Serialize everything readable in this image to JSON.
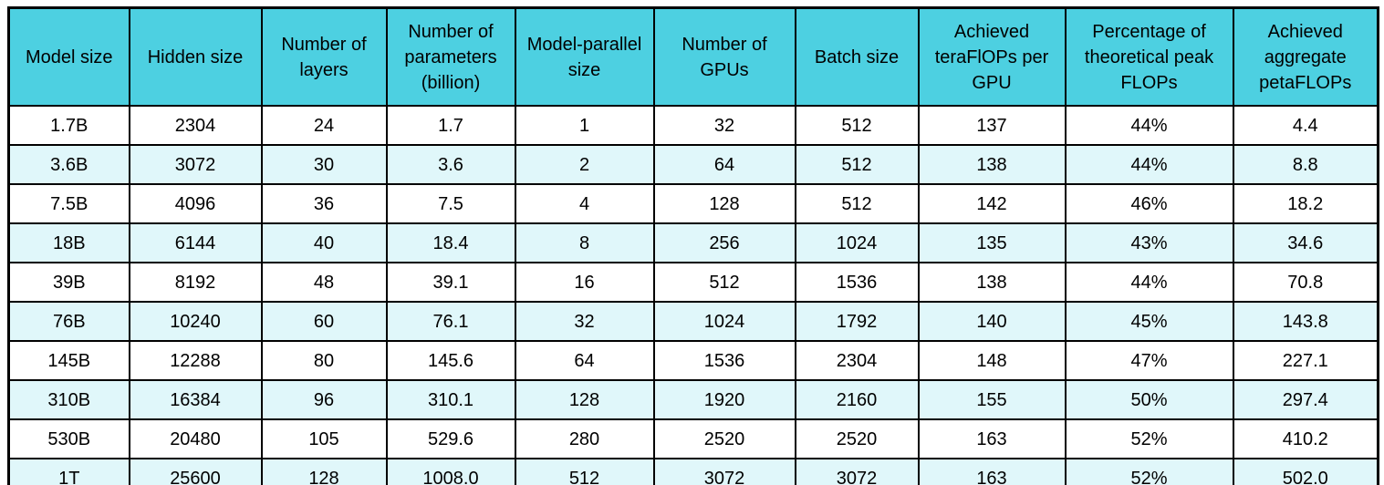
{
  "colors": {
    "header_bg": "#4dd0e1",
    "row_bg": "#ffffff",
    "row_alt_bg": "#e0f7fa",
    "border": "#000000",
    "text": "#000000",
    "page_bg": "#ffffff"
  },
  "chart_data": {
    "type": "table",
    "columns": [
      "Model size",
      "Hidden size",
      "Number of layers",
      "Number of parameters (billion)",
      "Model-parallel size",
      "Number of GPUs",
      "Batch size",
      "Achieved teraFlOPs per GPU",
      "Percentage of theoretical peak FLOPs",
      "Achieved aggregate petaFLOPs"
    ],
    "rows": [
      [
        "1.7B",
        "2304",
        "24",
        "1.7",
        "1",
        "32",
        "512",
        "137",
        "44%",
        "4.4"
      ],
      [
        "3.6B",
        "3072",
        "30",
        "3.6",
        "2",
        "64",
        "512",
        "138",
        "44%",
        "8.8"
      ],
      [
        "7.5B",
        "4096",
        "36",
        "7.5",
        "4",
        "128",
        "512",
        "142",
        "46%",
        "18.2"
      ],
      [
        "18B",
        "6144",
        "40",
        "18.4",
        "8",
        "256",
        "1024",
        "135",
        "43%",
        "34.6"
      ],
      [
        "39B",
        "8192",
        "48",
        "39.1",
        "16",
        "512",
        "1536",
        "138",
        "44%",
        "70.8"
      ],
      [
        "76B",
        "10240",
        "60",
        "76.1",
        "32",
        "1024",
        "1792",
        "140",
        "45%",
        "143.8"
      ],
      [
        "145B",
        "12288",
        "80",
        "145.6",
        "64",
        "1536",
        "2304",
        "148",
        "47%",
        "227.1"
      ],
      [
        "310B",
        "16384",
        "96",
        "310.1",
        "128",
        "1920",
        "2160",
        "155",
        "50%",
        "297.4"
      ],
      [
        "530B",
        "20480",
        "105",
        "529.6",
        "280",
        "2520",
        "2520",
        "163",
        "52%",
        "410.2"
      ],
      [
        "1T",
        "25600",
        "128",
        "1008.0",
        "512",
        "3072",
        "3072",
        "163",
        "52%",
        "502.0"
      ]
    ]
  }
}
